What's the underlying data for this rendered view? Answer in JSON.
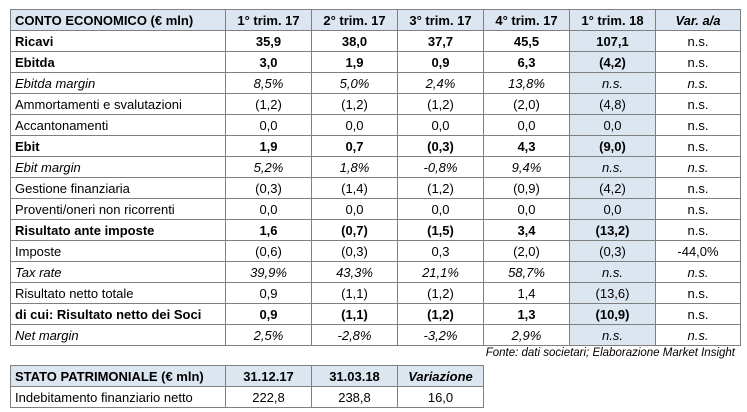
{
  "income_table": {
    "header": [
      "CONTO ECONOMICO (€ mln)",
      "1° trim. 17",
      "2° trim. 17",
      "3° trim. 17",
      "4° trim. 17",
      "1° trim. 18",
      "Var. a/a"
    ],
    "rows": [
      [
        "Ricavi",
        "35,9",
        "38,0",
        "37,7",
        "45,5",
        "107,1",
        "n.s."
      ],
      [
        "Ebitda",
        "3,0",
        "1,9",
        "0,9",
        "6,3",
        "(4,2)",
        "n.s."
      ],
      [
        "Ebitda margin",
        "8,5%",
        "5,0%",
        "2,4%",
        "13,8%",
        "n.s.",
        "n.s."
      ],
      [
        "Ammortamenti e svalutazioni",
        "(1,2)",
        "(1,2)",
        "(1,2)",
        "(2,0)",
        "(4,8)",
        "n.s."
      ],
      [
        "Accantonamenti",
        "0,0",
        "0,0",
        "0,0",
        "0,0",
        "0,0",
        "n.s."
      ],
      [
        "Ebit",
        "1,9",
        "0,7",
        "(0,3)",
        "4,3",
        "(9,0)",
        "n.s."
      ],
      [
        "Ebit margin",
        "5,2%",
        "1,8%",
        "-0,8%",
        "9,4%",
        "n.s.",
        "n.s."
      ],
      [
        "Gestione finanziaria",
        "(0,3)",
        "(1,4)",
        "(1,2)",
        "(0,9)",
        "(4,2)",
        "n.s."
      ],
      [
        "Proventi/oneri non ricorrenti",
        "0,0",
        "0,0",
        "0,0",
        "0,0",
        "0,0",
        "n.s."
      ],
      [
        "Risultato ante imposte",
        "1,6",
        "(0,7)",
        "(1,5)",
        "3,4",
        "(13,2)",
        "n.s."
      ],
      [
        "Imposte",
        "(0,6)",
        "(0,3)",
        "0,3",
        "(2,0)",
        "(0,3)",
        "-44,0%"
      ],
      [
        "Tax rate",
        "39,9%",
        "43,3%",
        "21,1%",
        "58,7%",
        "n.s.",
        "n.s."
      ],
      [
        "Risultato netto totale",
        "0,9",
        "(1,1)",
        "(1,2)",
        "1,4",
        "(13,6)",
        "n.s."
      ],
      [
        "di cui: Risultato netto dei Soci",
        "0,9",
        "(1,1)",
        "(1,2)",
        "1,3",
        "(10,9)",
        "n.s."
      ],
      [
        "Net margin",
        "2,5%",
        "-2,8%",
        "-3,2%",
        "2,9%",
        "n.s.",
        "n.s."
      ]
    ],
    "source": "Fonte: dati societari; Elaborazione Market Insight"
  },
  "balance_table": {
    "header": [
      "STATO PATRIMONIALE (€ mln)",
      "31.12.17",
      "31.03.18",
      "Variazione"
    ],
    "rows": [
      [
        "Indebitamento finanziario netto",
        "222,8",
        "238,8",
        "16,0"
      ]
    ]
  }
}
